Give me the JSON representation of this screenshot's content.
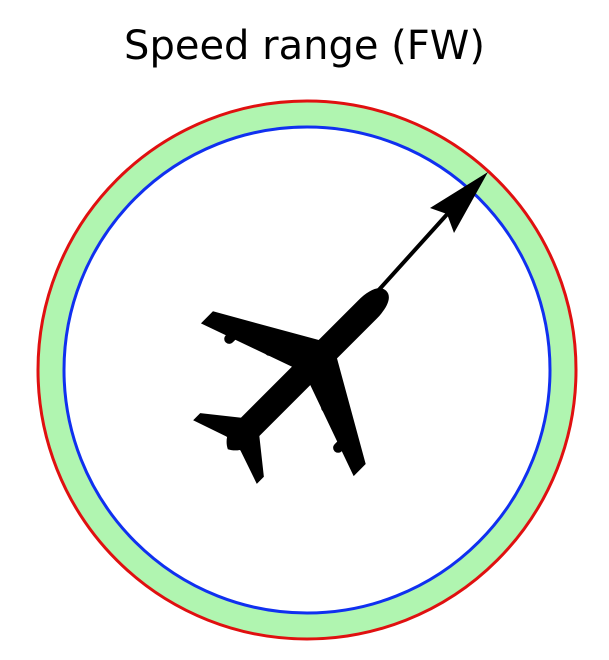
{
  "title": "Speed range (FW)",
  "colors": {
    "background": "#ffffff",
    "outer_ring": "#e01010",
    "speed_band": "#b0f5b0",
    "inner_ring": "#1030f0",
    "aircraft": "#000000",
    "arrow": "#000000"
  },
  "icons": {
    "aircraft": "airplane-silhouette-icon",
    "arrow": "heading-arrow-icon"
  }
}
